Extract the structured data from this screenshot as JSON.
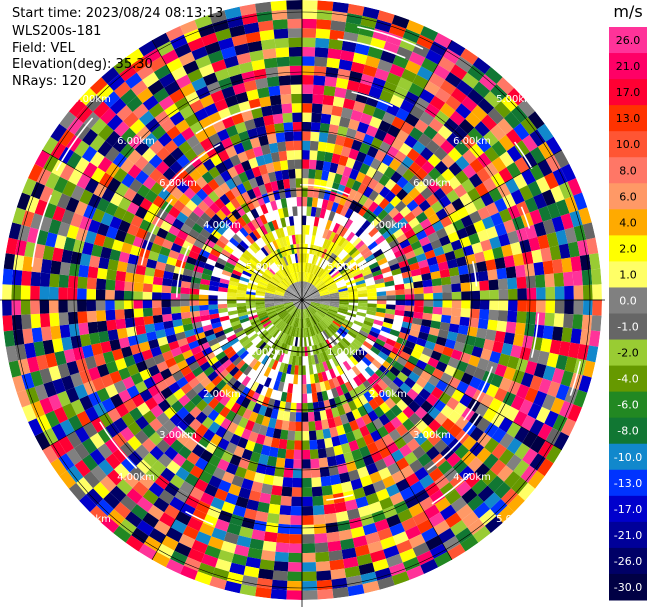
{
  "header": {
    "start_time": "Start time: 2023/08/24 08:13:13",
    "instrument": "WLS200s-181",
    "field": "Field: VEL",
    "elevation": "Elevation(deg): 35.30",
    "nrays": "NRays: 120"
  },
  "chart_data": {
    "type": "heatmap",
    "projection": "polar-ppi",
    "field": "VEL",
    "units": "m/s",
    "nrays": 120,
    "range_rings_km": [
      0.5,
      1.0,
      1.5,
      2.0,
      2.5,
      3.0
    ],
    "ring_labels": [
      "1.00km",
      "1.00km",
      "2.00km",
      "2.00km",
      "3.00km",
      "3.00km",
      "4.00km",
      "4.00km",
      "5.00km",
      "5.00km",
      "5.00km",
      "5.00km",
      "6.00km",
      "6.00km",
      "6.00km",
      "6.00km",
      "4.00km",
      "4.00km",
      "5.00km",
      "5.00km"
    ],
    "colorbar": {
      "title": "m/s",
      "ticks": [
        "26.0",
        "21.0",
        "17.0",
        "13.0",
        "10.0",
        "8.0",
        "6.0",
        "4.0",
        "2.0",
        "1.0",
        "0.0",
        "-1.0",
        "-2.0",
        "-4.0",
        "-6.0",
        "-8.0",
        "-10.0",
        "-13.0",
        "-17.0",
        "-21.0",
        "-26.0",
        "-30.0"
      ],
      "colors": [
        "#ff3399",
        "#ff0066",
        "#ff0033",
        "#ff3300",
        "#ff5533",
        "#ff7766",
        "#ff9966",
        "#ffaa00",
        "#ffff00",
        "#ffff66",
        "#808080",
        "#666666",
        "#99cc33",
        "#669900",
        "#228822",
        "#117733",
        "#1188cc",
        "#0033ff",
        "#0000cc",
        "#000099",
        "#000066",
        "#000044"
      ]
    },
    "near_field_colors": [
      "#ffff00",
      "#eeee22",
      "#dddd00",
      "#808080",
      "#999999",
      "#888888",
      "#99cc33",
      "#88bb22",
      "#669900"
    ]
  }
}
